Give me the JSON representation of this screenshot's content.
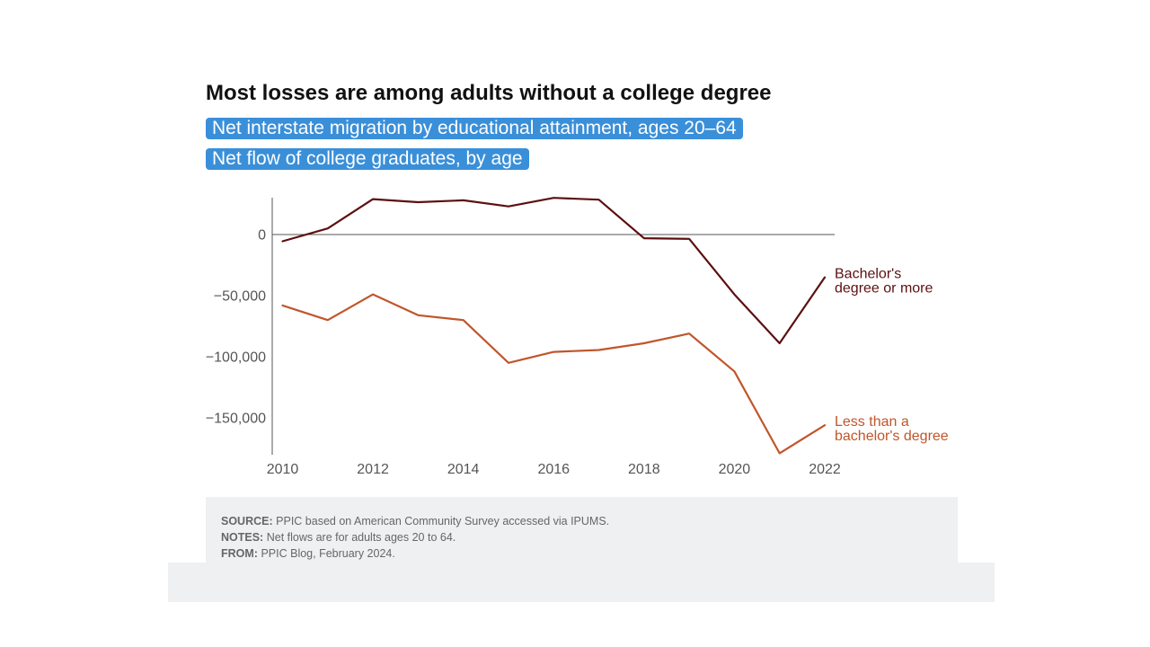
{
  "header": {
    "title": "Most losses are among adults without a college degree",
    "tabs": [
      "Net interstate migration by educational attainment, ages 20–64",
      "Net flow of college graduates, by age"
    ]
  },
  "chart_data": {
    "type": "line",
    "title": "Most losses are among adults without a college degree",
    "xlabel": "",
    "ylabel": "",
    "x": [
      2010,
      2011,
      2012,
      2013,
      2014,
      2015,
      2016,
      2017,
      2018,
      2019,
      2020,
      2021,
      2022
    ],
    "x_ticks": [
      2010,
      2012,
      2014,
      2016,
      2018,
      2020,
      2022
    ],
    "y_ticks": [
      0,
      -50000,
      -100000,
      -150000
    ],
    "y_tick_labels": [
      "0",
      "−50,000",
      "−100,000",
      "−150,000"
    ],
    "ylim": [
      -180000,
      30000
    ],
    "grid": false,
    "zero_line": true,
    "series": [
      {
        "name": "Bachelor's degree or more",
        "label_lines": [
          "Bachelor's",
          "degree or more"
        ],
        "color": "#5c1010",
        "values": [
          -5500,
          5000,
          29000,
          26500,
          28000,
          23000,
          30000,
          28500,
          -3000,
          -3500,
          -49000,
          -89000,
          -35000
        ]
      },
      {
        "name": "Less than a bachelor's degree",
        "label_lines": [
          "Less than a",
          "bachelor's degree"
        ],
        "color": "#c0562a",
        "values": [
          -58000,
          -70000,
          -49000,
          -66000,
          -70000,
          -105000,
          -96000,
          -94500,
          -89000,
          -81000,
          -112000,
          -179000,
          -156000
        ]
      }
    ]
  },
  "footer": {
    "source_label": "SOURCE:",
    "source_text": "PPIC based on American Community Survey accessed via IPUMS.",
    "notes_label": "NOTES:",
    "notes_text": "Net flows are for adults ages 20 to 64.",
    "from_label": "FROM:",
    "from_text": "PPIC Blog, February 2024."
  }
}
